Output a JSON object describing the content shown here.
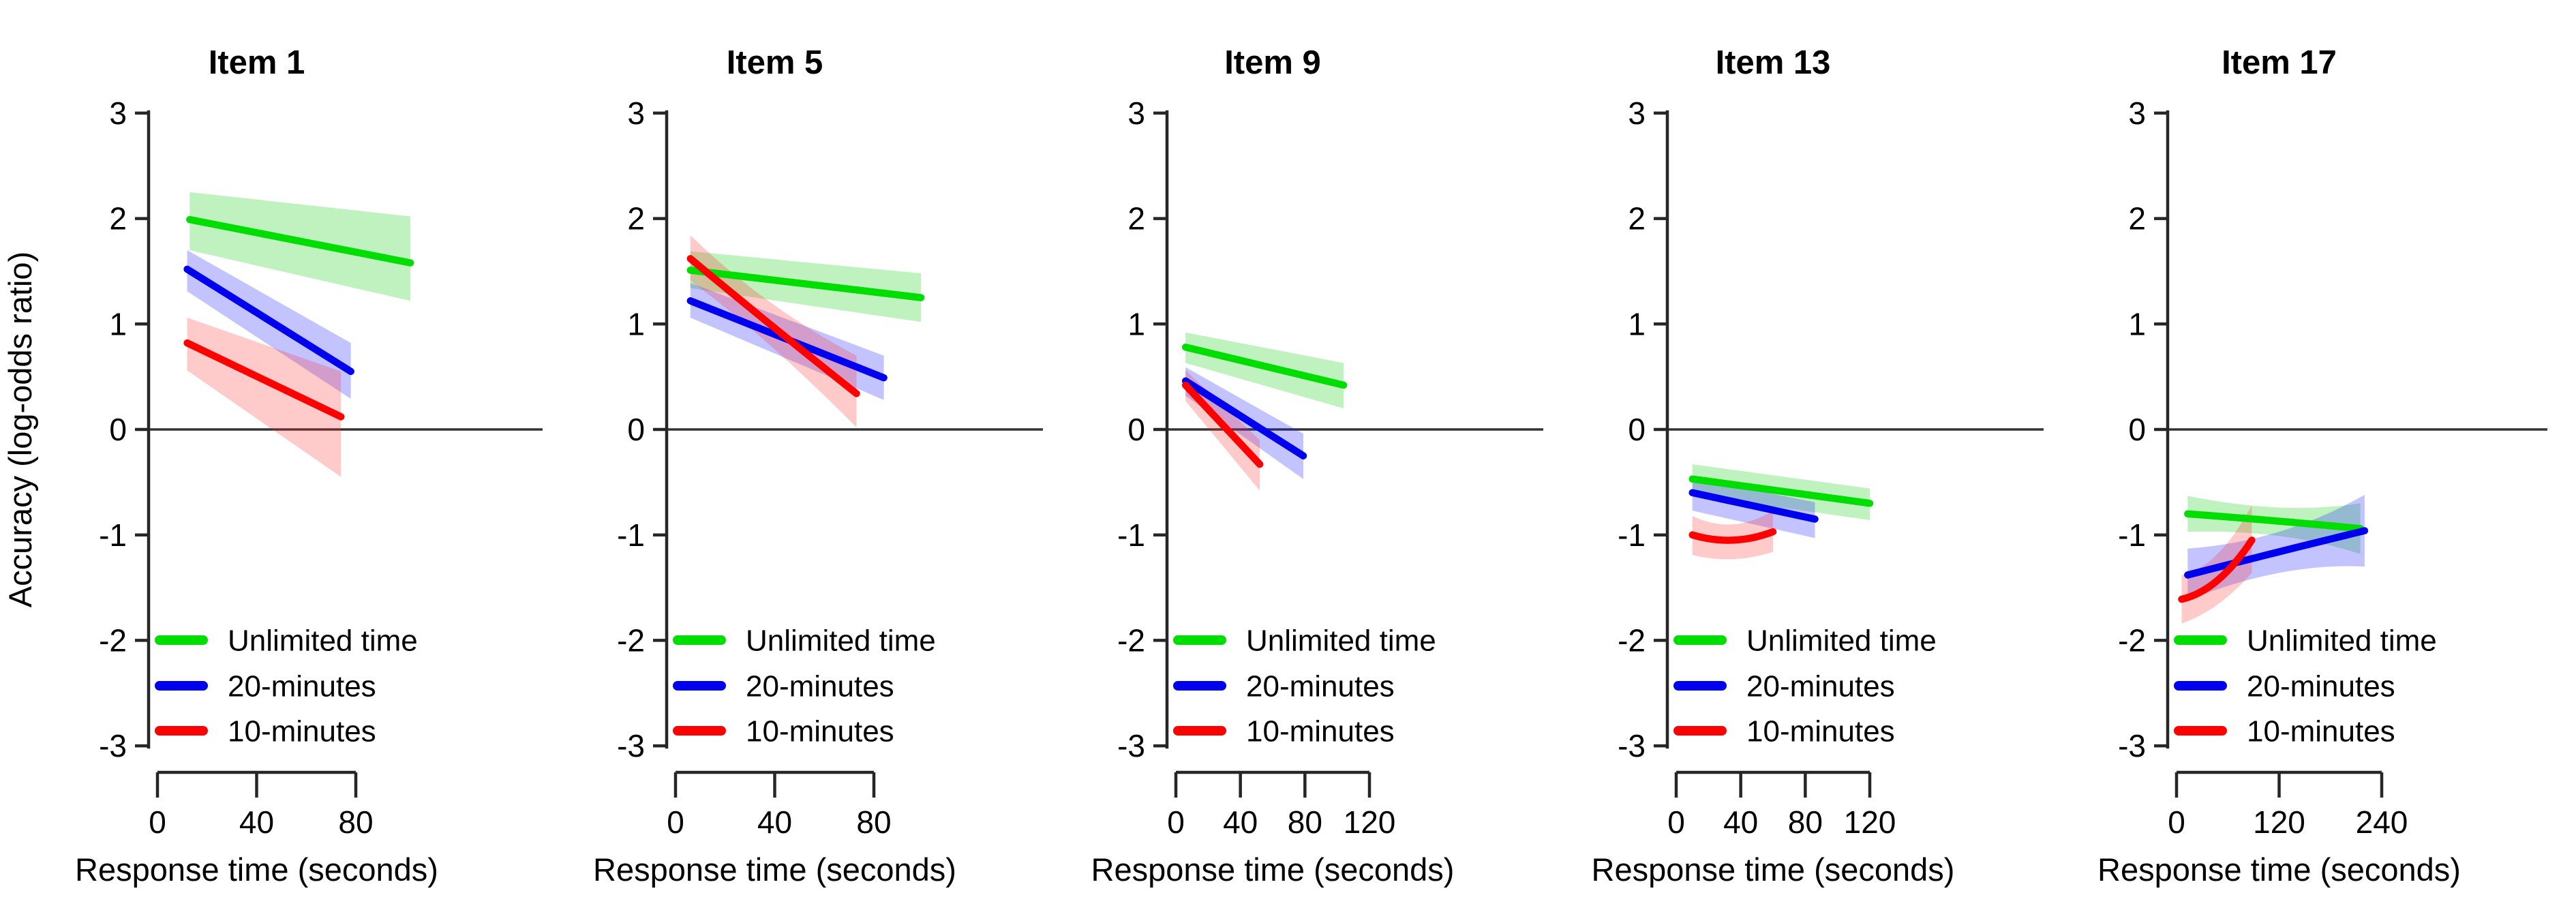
{
  "figure": {
    "ylabel": "Accuracy (log-odds ratio)",
    "xlabel": "Response time (seconds)",
    "y_ticks": [
      3,
      2,
      1,
      0,
      -1,
      -2,
      -3
    ],
    "ylim": [
      -3,
      3
    ],
    "axis_color": "#262626",
    "zero_line_color": "#333333",
    "legend": [
      {
        "label": "Unlimited time",
        "color": "#00dd00"
      },
      {
        "label": "20-minutes",
        "color": "#0000ee"
      },
      {
        "label": "10-minutes",
        "color": "#ff0000"
      }
    ]
  },
  "chart_data": [
    {
      "type": "line",
      "title": "Item 1",
      "xlabel": "Response time (seconds)",
      "ylabel": "Accuracy (log-odds ratio)",
      "xlim": [
        0,
        80
      ],
      "ylim": [
        -3,
        3
      ],
      "x_ticks": [
        0,
        40,
        80
      ],
      "series": [
        {
          "name": "Unlimited time",
          "color": "#00dd00",
          "band_color": "#00cc00",
          "band_opacity": 0.25,
          "x": [
            13,
            102
          ],
          "y": [
            1.99,
            1.58
          ],
          "band_upper": [
            2.25,
            2.02
          ],
          "band_lower": [
            1.7,
            1.22
          ]
        },
        {
          "name": "20-minutes",
          "color": "#0000ee",
          "band_color": "#2222ff",
          "band_opacity": 0.27,
          "x": [
            12,
            78
          ],
          "y": [
            1.52,
            0.55
          ],
          "band_upper": [
            1.7,
            0.82
          ],
          "band_lower": [
            1.31,
            0.29
          ]
        },
        {
          "name": "10-minutes",
          "color": "#ff0000",
          "band_color": "#ff2a2a",
          "band_opacity": 0.25,
          "x": [
            12,
            74
          ],
          "y": [
            0.82,
            0.12
          ],
          "band_upper": [
            1.06,
            0.55
          ],
          "band_lower": [
            0.56,
            -0.45
          ]
        }
      ]
    },
    {
      "type": "line",
      "title": "Item 5",
      "xlabel": "Response time (seconds)",
      "ylabel": "Accuracy (log-odds ratio)",
      "xlim": [
        0,
        80
      ],
      "ylim": [
        -3,
        3
      ],
      "x_ticks": [
        0,
        40,
        80
      ],
      "series": [
        {
          "name": "Unlimited time",
          "color": "#00dd00",
          "band_color": "#00cc00",
          "band_opacity": 0.25,
          "x": [
            6,
            99
          ],
          "y": [
            1.51,
            1.25
          ],
          "band_upper": [
            1.69,
            1.48
          ],
          "band_lower": [
            1.34,
            1.02
          ]
        },
        {
          "name": "20-minutes",
          "color": "#0000ee",
          "band_color": "#2222ff",
          "band_opacity": 0.27,
          "x": [
            6,
            84
          ],
          "y": [
            1.22,
            0.49
          ],
          "band_upper": [
            1.39,
            0.7
          ],
          "band_lower": [
            1.06,
            0.28
          ]
        },
        {
          "name": "10-minutes",
          "color": "#ff0000",
          "band_color": "#ff2a2a",
          "band_opacity": 0.25,
          "x": [
            6,
            38,
            73
          ],
          "y": [
            1.62,
            1.0,
            0.34
          ],
          "band_upper": [
            1.84,
            1.21,
            0.7
          ],
          "band_lower": [
            1.41,
            0.8,
            0.02
          ]
        }
      ]
    },
    {
      "type": "line",
      "title": "Item 9",
      "xlabel": "Response time (seconds)",
      "ylabel": "Accuracy (log-odds ratio)",
      "xlim": [
        0,
        120
      ],
      "ylim": [
        -3,
        3
      ],
      "x_ticks": [
        0,
        40,
        80,
        120
      ],
      "series": [
        {
          "name": "Unlimited time",
          "color": "#00dd00",
          "band_color": "#00cc00",
          "band_opacity": 0.25,
          "x": [
            6,
            104
          ],
          "y": [
            0.78,
            0.42
          ],
          "band_upper": [
            0.92,
            0.63
          ],
          "band_lower": [
            0.63,
            0.2
          ]
        },
        {
          "name": "20-minutes",
          "color": "#0000ee",
          "band_color": "#2222ff",
          "band_opacity": 0.27,
          "x": [
            6,
            79
          ],
          "y": [
            0.46,
            -0.25
          ],
          "band_upper": [
            0.59,
            -0.04
          ],
          "band_lower": [
            0.32,
            -0.47
          ]
        },
        {
          "name": "10-minutes",
          "color": "#ff0000",
          "band_color": "#ff2a2a",
          "band_opacity": 0.25,
          "x": [
            6,
            52
          ],
          "y": [
            0.42,
            -0.33
          ],
          "band_upper": [
            0.56,
            -0.1
          ],
          "band_lower": [
            0.27,
            -0.58
          ]
        }
      ]
    },
    {
      "type": "line",
      "title": "Item 13",
      "xlabel": "Response time (seconds)",
      "ylabel": "Accuracy (log-odds ratio)",
      "xlim": [
        0,
        120
      ],
      "ylim": [
        -3,
        3
      ],
      "x_ticks": [
        0,
        40,
        80,
        120
      ],
      "series": [
        {
          "name": "Unlimited time",
          "color": "#00dd00",
          "band_color": "#00cc00",
          "band_opacity": 0.25,
          "x": [
            10,
            120
          ],
          "y": [
            -0.47,
            -0.7
          ],
          "band_upper": [
            -0.33,
            -0.56
          ],
          "band_lower": [
            -0.62,
            -0.86
          ]
        },
        {
          "name": "20-minutes",
          "color": "#0000ee",
          "band_color": "#2222ff",
          "band_opacity": 0.27,
          "x": [
            10,
            86
          ],
          "y": [
            -0.6,
            -0.85
          ],
          "band_upper": [
            -0.46,
            -0.69
          ],
          "band_lower": [
            -0.77,
            -1.03
          ]
        },
        {
          "name": "10-minutes",
          "color": "#ff0000",
          "band_color": "#ff2a2a",
          "band_opacity": 0.25,
          "x": [
            10,
            35,
            60
          ],
          "y": [
            -1.0,
            -1.05,
            -0.97
          ],
          "band_upper": [
            -0.82,
            -0.9,
            -0.77
          ],
          "band_lower": [
            -1.19,
            -1.23,
            -1.16
          ]
        }
      ]
    },
    {
      "type": "line",
      "title": "Item 17",
      "xlabel": "Response time (seconds)",
      "ylabel": "Accuracy (log-odds ratio)",
      "xlim": [
        0,
        240
      ],
      "ylim": [
        -3,
        3
      ],
      "x_ticks": [
        0,
        120,
        240
      ],
      "series": [
        {
          "name": "Unlimited time",
          "color": "#00dd00",
          "band_color": "#00cc00",
          "band_opacity": 0.25,
          "x": [
            13,
            120,
            215
          ],
          "y": [
            -0.8,
            -0.87,
            -0.94
          ],
          "band_upper": [
            -0.63,
            -0.74,
            -0.7
          ],
          "band_lower": [
            -0.97,
            -1.01,
            -1.18
          ]
        },
        {
          "name": "20-minutes",
          "color": "#0000ee",
          "band_color": "#2222ff",
          "band_opacity": 0.27,
          "x": [
            13,
            120,
            220
          ],
          "y": [
            -1.38,
            -1.16,
            -0.96
          ],
          "band_upper": [
            -1.13,
            -0.97,
            -0.62
          ],
          "band_lower": [
            -1.62,
            -1.36,
            -1.3
          ]
        },
        {
          "name": "10-minutes",
          "color": "#ff0000",
          "band_color": "#ff2a2a",
          "band_opacity": 0.25,
          "x": [
            6,
            48,
            88
          ],
          "y": [
            -1.61,
            -1.43,
            -1.05
          ],
          "band_upper": [
            -1.38,
            -1.18,
            -0.72
          ],
          "band_lower": [
            -1.84,
            -1.66,
            -1.36
          ]
        }
      ]
    }
  ]
}
